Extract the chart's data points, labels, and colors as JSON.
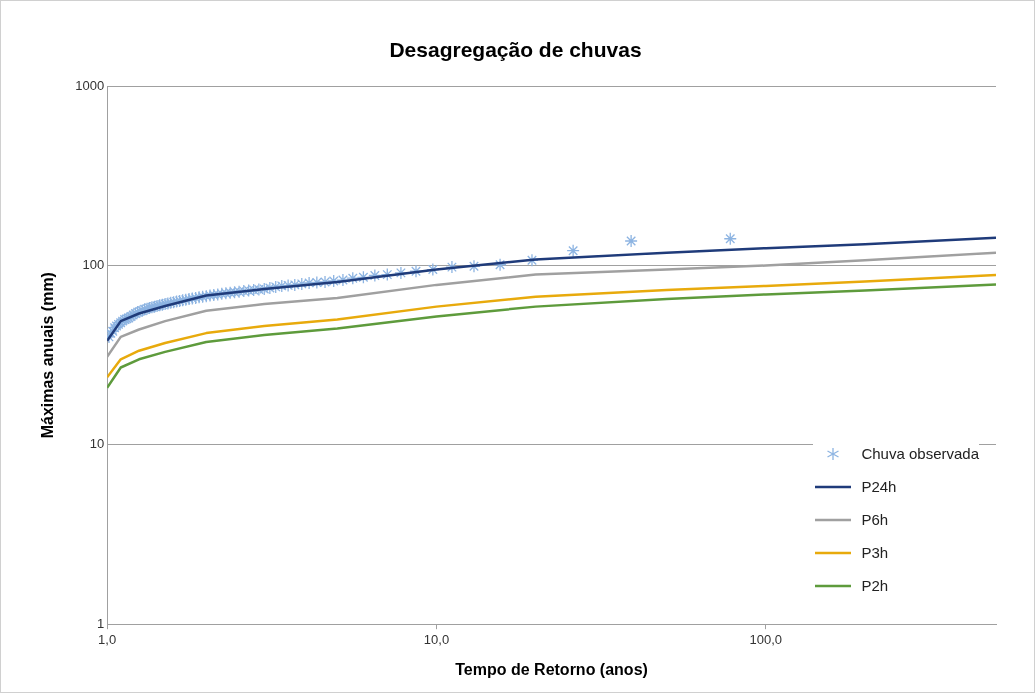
{
  "chart_data": {
    "type": "line",
    "title": "Desagregação de chuvas",
    "xlabel": "Tempo de Retorno (anos)",
    "ylabel": "Máximas anuais (mm)",
    "log": "xy",
    "xlim": [
      1,
      500
    ],
    "xticks": [
      {
        "value": 1,
        "label": "1,0"
      },
      {
        "value": 10,
        "label": "10,0"
      },
      {
        "value": 100,
        "label": "100,0"
      }
    ],
    "ylim": [
      1,
      1000
    ],
    "yticks": [
      1,
      10,
      100,
      1000
    ],
    "grid": "y",
    "legend": "bottom right",
    "series": [
      {
        "name": "Chuva observada",
        "type": "scatter",
        "marker": "cross",
        "color": "#8db4e2",
        "x": [
          1.013,
          1.026,
          1.04,
          1.054,
          1.068,
          1.083,
          1.099,
          1.114,
          1.13,
          1.147,
          1.164,
          1.182,
          1.2,
          1.219,
          1.238,
          1.258,
          1.279,
          1.3,
          1.322,
          1.345,
          1.368,
          1.393,
          1.418,
          1.444,
          1.472,
          1.5,
          1.529,
          1.56,
          1.592,
          1.625,
          1.66,
          1.696,
          1.733,
          1.773,
          1.814,
          1.857,
          1.902,
          1.95,
          2.0,
          2.053,
          2.108,
          2.167,
          2.229,
          2.294,
          2.364,
          2.438,
          2.516,
          2.6,
          2.69,
          2.786,
          2.889,
          3.0,
          3.12,
          3.25,
          3.391,
          3.545,
          3.714,
          3.9,
          4.105,
          4.333,
          4.588,
          4.875,
          5.2,
          5.571,
          6.0,
          6.5,
          7.091,
          7.8,
          8.667,
          9.75,
          11.143,
          13,
          15.6,
          19.5,
          26,
          39,
          78
        ],
        "values": [
          40,
          42,
          43,
          45,
          46,
          47,
          48,
          49,
          50,
          50.5,
          51,
          52,
          53,
          54,
          55,
          55.5,
          56,
          57,
          57.5,
          58,
          58.5,
          59,
          59.5,
          60,
          60.5,
          61,
          61.5,
          62,
          62.5,
          63,
          63.5,
          64,
          64.5,
          65,
          65.5,
          66,
          66.5,
          67,
          67.5,
          68,
          68.5,
          69,
          69.5,
          70,
          70.5,
          71,
          71.5,
          72,
          72.5,
          73,
          73.5,
          74,
          75,
          76,
          77,
          77.5,
          78,
          79,
          80,
          80.5,
          81,
          82,
          83,
          85,
          86,
          88,
          89,
          91,
          93,
          95,
          98,
          99,
          101,
          107,
          121,
          137,
          141
        ]
      },
      {
        "name": "P24h",
        "type": "line",
        "color": "#1f3b7a",
        "x": [
          1,
          1.1,
          1.25,
          1.5,
          2,
          3,
          5,
          10,
          20,
          50,
          100,
          200,
          500
        ],
        "values": [
          38,
          49,
          54,
          59.5,
          68,
          74,
          81,
          95,
          108,
          118,
          125,
          131.5,
          143
        ]
      },
      {
        "name": "P6h",
        "type": "line",
        "color": "#a0a0a0",
        "x": [
          1,
          1.1,
          1.25,
          1.5,
          2,
          3,
          5,
          10,
          20,
          50,
          100,
          200,
          500
        ],
        "values": [
          31,
          40,
          44,
          49,
          56,
          61,
          66,
          78,
          89,
          95,
          100,
          107,
          118
        ]
      },
      {
        "name": "P3h",
        "type": "line",
        "color": "#e8aa0c",
        "x": [
          1,
          1.1,
          1.25,
          1.5,
          2,
          3,
          5,
          10,
          20,
          50,
          100,
          200,
          500
        ],
        "values": [
          23.8,
          30,
          33.5,
          37,
          42,
          46,
          50,
          59,
          67,
          73,
          77,
          81.5,
          88.5
        ]
      },
      {
        "name": "P2h",
        "type": "line",
        "color": "#5e9b3c",
        "x": [
          1,
          1.1,
          1.25,
          1.5,
          2,
          3,
          5,
          10,
          20,
          50,
          100,
          200,
          500
        ],
        "values": [
          20.8,
          27,
          30,
          33,
          37.5,
          41,
          44.5,
          52,
          59,
          65,
          69,
          72.5,
          78.5
        ]
      }
    ]
  }
}
